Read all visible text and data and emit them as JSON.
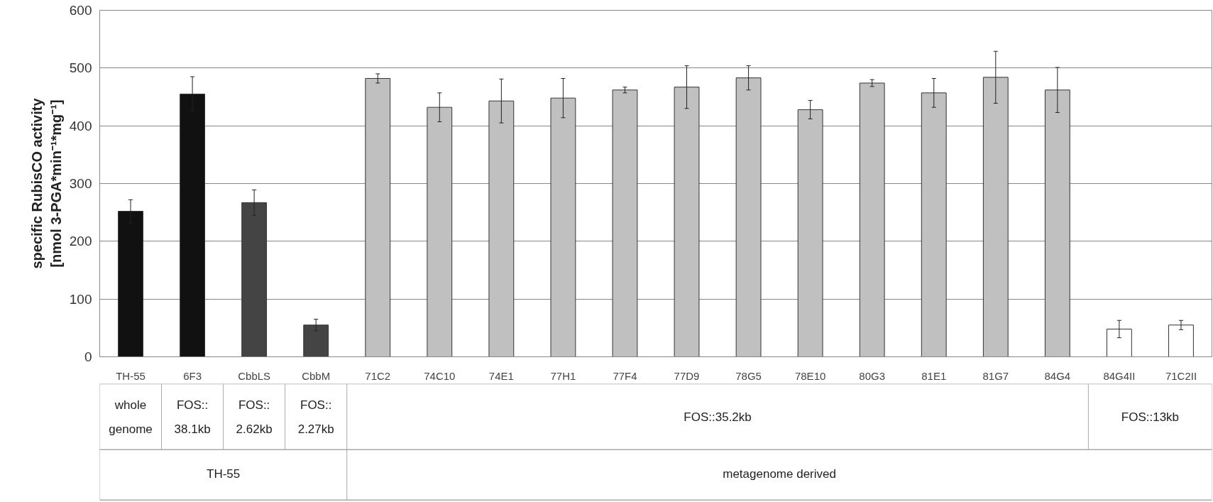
{
  "chart_data": {
    "type": "bar",
    "ylabel": "specific RubisCO activity\n[nmol 3-PGA*min⁻¹*mg⁻¹]",
    "categories": [
      "TH-55",
      "6F3",
      "CbbLS",
      "CbbM",
      "71C2",
      "74C10",
      "74E1",
      "77H1",
      "77F4",
      "77D9",
      "78G5",
      "78E10",
      "80G3",
      "81E1",
      "81G7",
      "84G4",
      "84G4II",
      "71C2II"
    ],
    "values": [
      252,
      455,
      267,
      55,
      482,
      432,
      443,
      448,
      462,
      467,
      483,
      428,
      474,
      457,
      484,
      462,
      48,
      55
    ],
    "errors": [
      20,
      30,
      22,
      10,
      8,
      25,
      38,
      34,
      5,
      37,
      21,
      16,
      6,
      25,
      45,
      39,
      15,
      8
    ],
    "colors": [
      "#111111",
      "#111111",
      "#444444",
      "#444444",
      "#c0c0c0",
      "#c0c0c0",
      "#c0c0c0",
      "#c0c0c0",
      "#c0c0c0",
      "#c0c0c0",
      "#c0c0c0",
      "#c0c0c0",
      "#c0c0c0",
      "#c0c0c0",
      "#c0c0c0",
      "#c0c0c0",
      "#ffffff",
      "#ffffff"
    ],
    "ylim": [
      0,
      600
    ],
    "yticks": [
      0,
      100,
      200,
      300,
      400,
      500,
      600
    ],
    "grid": "y",
    "annotations": [
      "whole genome",
      "FOS:: 38.1kb",
      "FOS:: 2.62kb",
      "FOS:: 2.27kb",
      "FOS::35.2kb",
      "FOS::13kb",
      "TH-55",
      "metagenome derived"
    ]
  }
}
